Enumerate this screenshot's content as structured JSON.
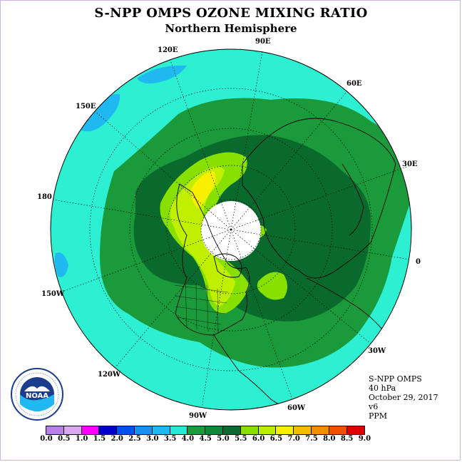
{
  "title": "S-NPP OMPS OZONE MIXING RATIO",
  "subtitle": "Northern Hemisphere",
  "longitude_labels": [
    "120E",
    "90E",
    "60E",
    "150E",
    "30E",
    "180",
    "0",
    "150W",
    "30W",
    "120W",
    "60W",
    "90W"
  ],
  "info": {
    "product": "S-NPP OMPS",
    "level": "40 hPa",
    "date": "October 29, 2017",
    "version": "v6",
    "units": "PPM"
  },
  "logo_text": "NOAA",
  "colorbar": {
    "labels": [
      "0.0",
      "0.5",
      "1.0",
      "1.5",
      "2.0",
      "2.5",
      "3.0",
      "3.5",
      "4.0",
      "4.5",
      "5.0",
      "5.5",
      "6.0",
      "6.5",
      "7.0",
      "7.5",
      "8.0",
      "8.5",
      "9.0"
    ],
    "colors": [
      "#b87fe8",
      "#d9a8f0",
      "#ff00ff",
      "#0000c8",
      "#0050f0",
      "#1890f0",
      "#20b8f0",
      "#28e8d8",
      "#1a9a3a",
      "#10883a",
      "#0a6a30",
      "#88e000",
      "#b8f000",
      "#f8f000",
      "#f0c000",
      "#f09000",
      "#f05000",
      "#e00000",
      "#8a5a3a"
    ],
    "colors_note": "colorbar swatch colors"
  },
  "palette": {
    "cyan": "#2df0d2",
    "dark_green": "#0a6a2e",
    "green": "#1a9a3a",
    "light_green": "#88e000",
    "yellow_green": "#c0f000",
    "yellow": "#f8f000",
    "night": "#ffffff",
    "blue": "#20b8f0"
  }
}
